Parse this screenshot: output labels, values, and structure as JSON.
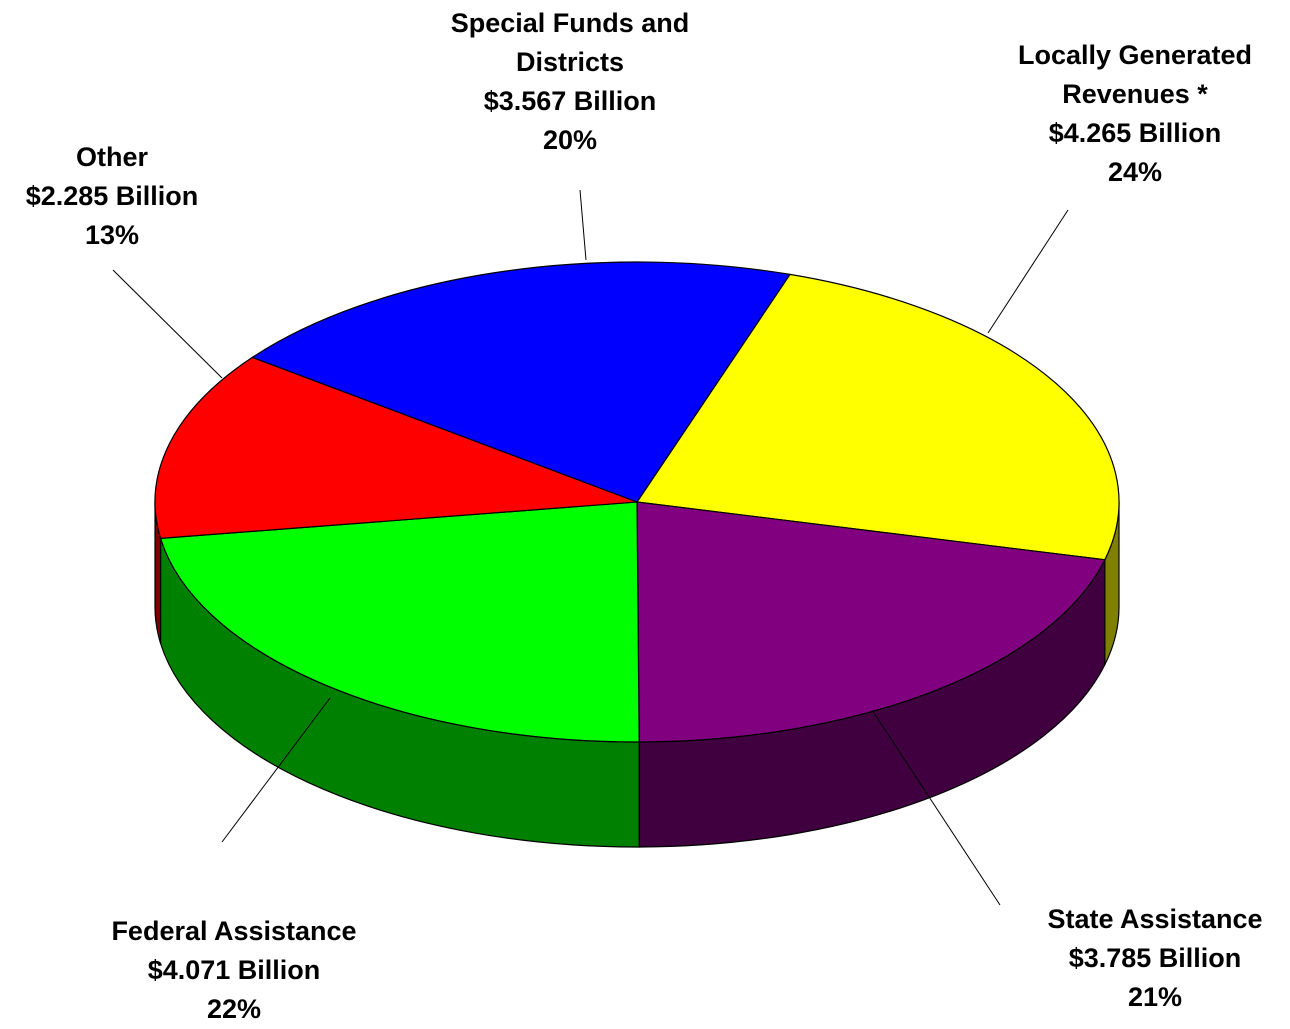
{
  "chart_data": {
    "type": "pie",
    "style": "3d-perspective",
    "title": "",
    "slices": [
      {
        "name": "Locally Generated Revenues *",
        "amount": "$4.265 Billion",
        "value": 4.265,
        "percent": "24%",
        "top_color": "#FFFF00",
        "side_color": "#808000"
      },
      {
        "name": "State Assistance",
        "amount": "$3.785 Billion",
        "value": 3.785,
        "percent": "21%",
        "top_color": "#800080",
        "side_color": "#400040"
      },
      {
        "name": "Federal Assistance",
        "amount": "$4.071 Billion",
        "value": 4.071,
        "percent": "22%",
        "top_color": "#00FF00",
        "side_color": "#008000"
      },
      {
        "name": "Other",
        "amount": "$2.285 Billion",
        "value": 2.285,
        "percent": "13%",
        "top_color": "#FF0000",
        "side_color": "#800000"
      },
      {
        "name": "Special Funds and Districts",
        "amount": "$3.567 Billion",
        "value": 3.567,
        "percent": "20%",
        "top_color": "#0000FF",
        "side_color": "#000080"
      }
    ]
  }
}
